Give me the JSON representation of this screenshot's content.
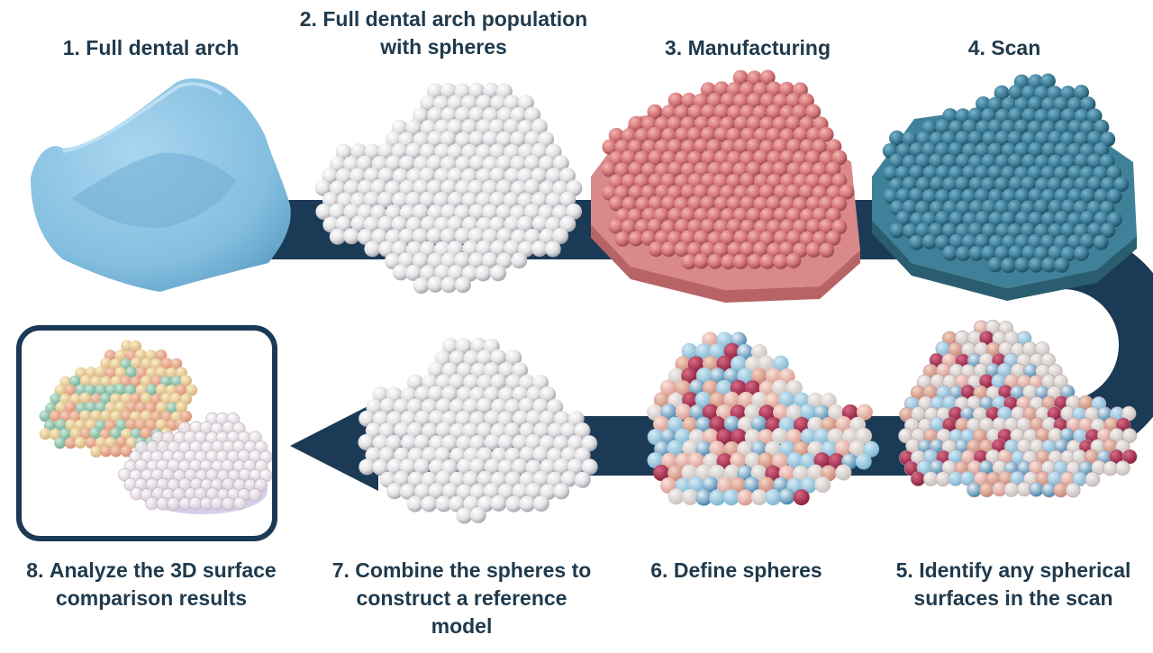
{
  "steps": {
    "s1": {
      "number": "1.",
      "lines": [
        "Full dental arch"
      ]
    },
    "s2": {
      "number": "2.",
      "lines": [
        "Full dental arch population",
        "with spheres"
      ]
    },
    "s3": {
      "number": "3.",
      "lines": [
        "Manufacturing"
      ]
    },
    "s4": {
      "number": "4.",
      "lines": [
        "Scan"
      ]
    },
    "s5": {
      "number": "5.",
      "lines": [
        "Identify any spherical",
        "surfaces in the scan"
      ]
    },
    "s6": {
      "number": "6.",
      "lines": [
        "Define spheres"
      ]
    },
    "s7": {
      "number": "7.",
      "lines": [
        "Combine the spheres to",
        "construct a reference",
        "model"
      ]
    },
    "s8": {
      "number": "8.",
      "lines": [
        "Analyze the 3D surface",
        "comparison results"
      ]
    }
  },
  "colors": {
    "arrow": "#1b3a55",
    "arch_blue": "#8ec6e6",
    "sphere_white": "#e6e6e8",
    "manufacturing_red": "#d4787a",
    "scan_teal": "#3e7f99",
    "text": "#1f3a4d"
  }
}
